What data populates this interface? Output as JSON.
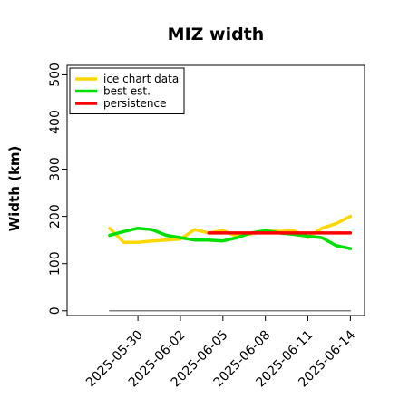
{
  "chart_data": {
    "type": "line",
    "title": "MIZ width",
    "xlabel": "",
    "ylabel": "Width (km)",
    "x_tick_labels": [
      "2025-05-30",
      "2025-06-02",
      "2025-06-05",
      "2025-06-08",
      "2025-06-11",
      "2025-06-14"
    ],
    "y_ticks": [
      0,
      100,
      200,
      300,
      400,
      500
    ],
    "ylim": [
      -10,
      520
    ],
    "xlim": [
      "2025-05-25",
      "2025-06-15"
    ],
    "grid": false,
    "legend_position": "top-left",
    "series": [
      {
        "name": "ice chart data",
        "color": "#FFD700",
        "x": [
          "2025-05-28",
          "2025-05-29",
          "2025-05-30",
          "2025-05-31",
          "2025-06-01",
          "2025-06-02",
          "2025-06-03",
          "2025-06-04",
          "2025-06-05",
          "2025-06-06",
          "2025-06-07",
          "2025-06-08",
          "2025-06-09",
          "2025-06-10",
          "2025-06-11",
          "2025-06-12",
          "2025-06-13",
          "2025-06-14"
        ],
        "y": [
          175,
          145,
          145,
          148,
          150,
          152,
          172,
          165,
          170,
          158,
          163,
          170,
          168,
          170,
          155,
          175,
          185,
          200
        ]
      },
      {
        "name": "best est.",
        "color": "#00E000",
        "x": [
          "2025-05-28",
          "2025-05-29",
          "2025-05-30",
          "2025-05-31",
          "2025-06-01",
          "2025-06-02",
          "2025-06-03",
          "2025-06-04",
          "2025-06-05",
          "2025-06-06",
          "2025-06-07",
          "2025-06-08",
          "2025-06-09",
          "2025-06-10",
          "2025-06-11",
          "2025-06-12",
          "2025-06-13",
          "2025-06-14"
        ],
        "y": [
          160,
          168,
          175,
          172,
          160,
          155,
          150,
          150,
          148,
          155,
          165,
          170,
          165,
          162,
          158,
          155,
          138,
          132
        ]
      },
      {
        "name": "persistence",
        "color": "#FF0000",
        "x": [
          "2025-06-04",
          "2025-06-05",
          "2025-06-06",
          "2025-06-07",
          "2025-06-08",
          "2025-06-09",
          "2025-06-10",
          "2025-06-11",
          "2025-06-12",
          "2025-06-13",
          "2025-06-14"
        ],
        "y": [
          165,
          165,
          165,
          165,
          165,
          165,
          165,
          165,
          165,
          165,
          165
        ]
      },
      {
        "name": "",
        "color": "#808080",
        "x": [
          "2025-05-28",
          "2025-06-14"
        ],
        "y": [
          0,
          0
        ]
      }
    ]
  }
}
